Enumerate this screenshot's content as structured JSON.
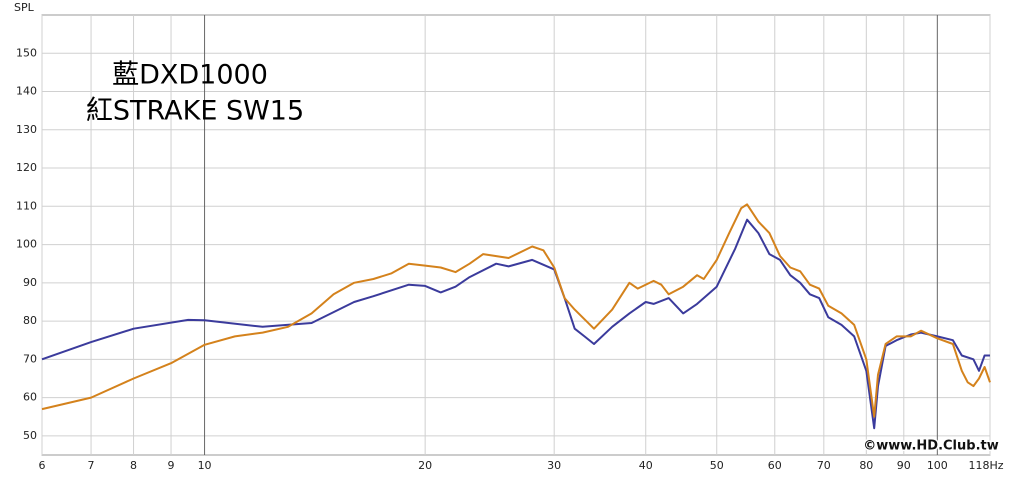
{
  "chart_data": {
    "type": "line",
    "y_label": "SPL",
    "watermark": "©www.HD.Club.tw",
    "log_x": true,
    "grid": true,
    "xlim": [
      6,
      118
    ],
    "ylim": [
      45,
      160
    ],
    "xticks": [
      6,
      7,
      8,
      9,
      10,
      20,
      30,
      40,
      50,
      60,
      70,
      80,
      90,
      100,
      {
        "value": 118,
        "label": "118Hz"
      }
    ],
    "yticks": [
      50,
      60,
      70,
      80,
      90,
      100,
      110,
      120,
      130,
      140,
      150
    ],
    "series": [
      {
        "name": "藍DXD1000",
        "color": "#3b3b9c",
        "x": [
          6,
          7,
          8,
          9.5,
          10,
          12,
          14,
          16,
          17,
          19,
          20,
          21,
          22,
          23,
          25,
          26,
          28,
          30,
          31,
          32,
          33,
          34,
          36,
          38,
          40,
          41,
          43,
          45,
          47,
          50,
          53,
          55,
          57,
          59,
          61,
          63,
          65,
          67,
          69,
          71,
          74,
          77,
          80,
          82,
          83,
          85,
          88,
          92,
          95,
          100,
          105,
          108,
          112,
          114,
          116,
          118
        ],
        "values": [
          70,
          74.5,
          78,
          80.3,
          80.2,
          78.5,
          79.5,
          85,
          86.5,
          89.5,
          89.2,
          87.5,
          89,
          91.5,
          95,
          94.3,
          96,
          93.5,
          86,
          78,
          76,
          74,
          78.5,
          82,
          85,
          84.5,
          86,
          82,
          84.5,
          89,
          99,
          106.5,
          103,
          97.5,
          96,
          92,
          90,
          87,
          86,
          81,
          79,
          76,
          67,
          52,
          63,
          73.5,
          75,
          76.5,
          77,
          76,
          75,
          71,
          70,
          67,
          71,
          71
        ]
      },
      {
        "name": "紅STRAKE SW15",
        "color": "#d4821c",
        "x": [
          6,
          7,
          8,
          9,
          10,
          11,
          12,
          13,
          14,
          15,
          16,
          17,
          18,
          19,
          20,
          21,
          22,
          23,
          24,
          26,
          28,
          29,
          30,
          31,
          32,
          34,
          36,
          38,
          39,
          41,
          42,
          43,
          45,
          47,
          48,
          50,
          52,
          54,
          55,
          57,
          59,
          61,
          63,
          65,
          67,
          69,
          71,
          74,
          77,
          80,
          82,
          83,
          85,
          88,
          92,
          95,
          100,
          105,
          108,
          110,
          112,
          114,
          116,
          118
        ],
        "values": [
          57,
          60,
          65,
          69,
          73.8,
          76,
          77,
          78.5,
          82,
          87,
          90,
          91,
          92.5,
          95,
          94.5,
          94,
          92.8,
          95,
          97.5,
          96.5,
          99.5,
          98.5,
          94,
          86,
          83,
          78,
          83,
          90,
          88.5,
          90.5,
          89.5,
          87,
          89,
          92,
          91,
          96,
          103,
          109.5,
          110.5,
          106,
          103,
          97,
          94,
          93,
          89.5,
          88.5,
          84,
          82,
          79,
          70,
          55,
          66,
          74,
          76,
          76,
          77.5,
          75.5,
          74,
          67,
          64,
          63,
          65,
          68,
          64
        ]
      }
    ]
  }
}
